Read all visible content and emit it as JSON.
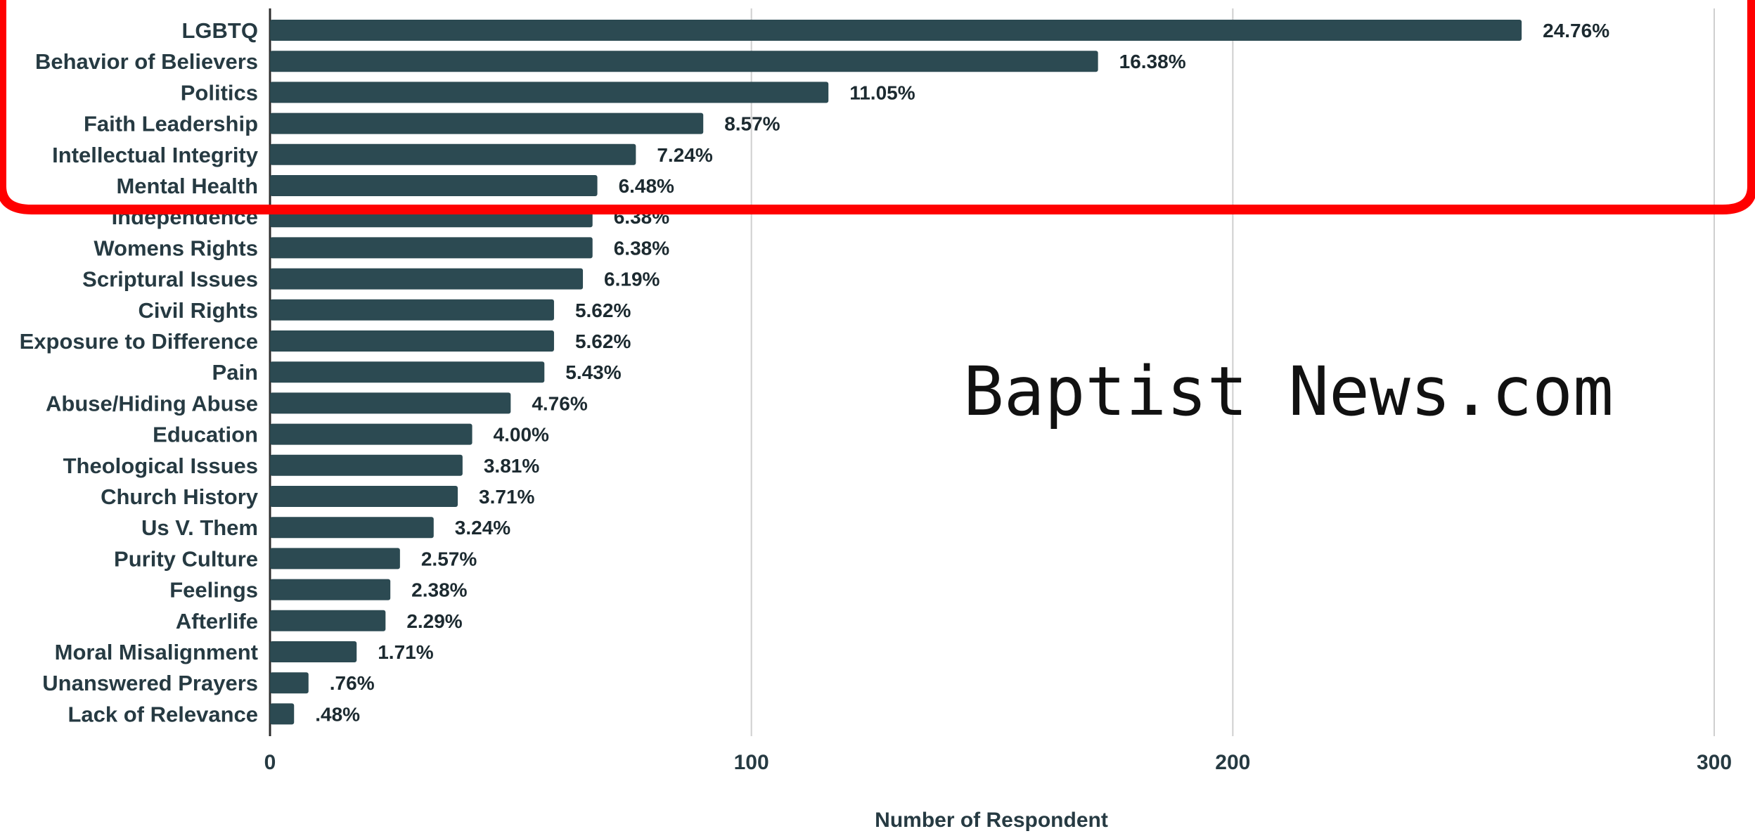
{
  "chart_data": {
    "type": "bar",
    "orientation": "horizontal",
    "categories": [
      "LGBTQ",
      "Behavior of Believers",
      "Politics",
      "Faith Leadership",
      "Intellectual Integrity",
      "Mental Health",
      "Independence",
      "Womens Rights",
      "Scriptural Issues",
      "Civil Rights",
      "Exposure to Difference",
      "Pain",
      "Abuse/Hiding Abuse",
      "Education",
      "Theological Issues",
      "Church History",
      "Us V. Them",
      "Purity Culture",
      "Feelings",
      "Afterlife",
      "Moral Misalignment",
      "Unanswered Prayers",
      "Lack of Relevance"
    ],
    "values": [
      260,
      172,
      116,
      90,
      76,
      68,
      67,
      67,
      65,
      59,
      59,
      57,
      50,
      42,
      40,
      39,
      34,
      27,
      25,
      24,
      18,
      8,
      5
    ],
    "value_labels": [
      "24.76%",
      "16.38%",
      "11.05%",
      "8.57%",
      "7.24%",
      "6.48%",
      "6.38%",
      "6.38%",
      "6.19%",
      "5.62%",
      "5.62%",
      "5.43%",
      "4.76%",
      "4.00%",
      "3.81%",
      "3.71%",
      "3.24%",
      "2.57%",
      "2.38%",
      "2.29%",
      "1.71%",
      ".76%",
      ".48%"
    ],
    "xlabel": "Number of Respondent",
    "xlim": [
      0,
      300
    ],
    "xticks": [
      0,
      100,
      200,
      300
    ],
    "grid": true,
    "bar_color": "#2c4a52"
  },
  "watermark": "Baptist News.com",
  "highlight_color": "#ff0000"
}
